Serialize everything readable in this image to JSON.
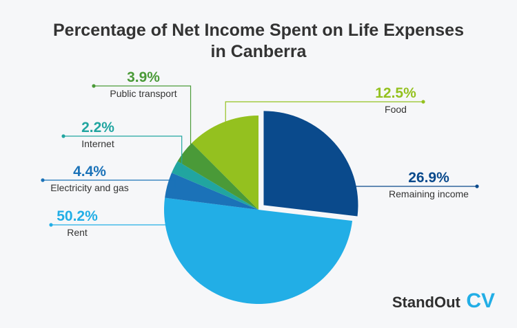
{
  "chart_data": {
    "type": "pie",
    "title": "Percentage of Net Income Spent on Life Expenses in Canberra",
    "title_lines": [
      "Percentage of Net Income Spent on Life Expenses",
      "in Canberra"
    ],
    "slices": [
      {
        "label": "Remaining income",
        "value": 26.9,
        "value_label": "26.9%",
        "color": "#0a4a8c",
        "exploded": true
      },
      {
        "label": "Rent",
        "value": 50.2,
        "value_label": "50.2%",
        "color": "#22aee6"
      },
      {
        "label": "Electricity and gas",
        "value": 4.4,
        "value_label": "4.4%",
        "color": "#1b72b8"
      },
      {
        "label": "Internet",
        "value": 2.2,
        "value_label": "2.2%",
        "color": "#21a5a0"
      },
      {
        "label": "Public transport",
        "value": 3.9,
        "value_label": "3.9%",
        "color": "#4a9a38"
      },
      {
        "label": "Food",
        "value": 12.5,
        "value_label": "12.5%",
        "color": "#94c11f"
      }
    ]
  },
  "brand": {
    "part1": "StandOut",
    "part2": "CV",
    "accent": "#22aee6"
  }
}
